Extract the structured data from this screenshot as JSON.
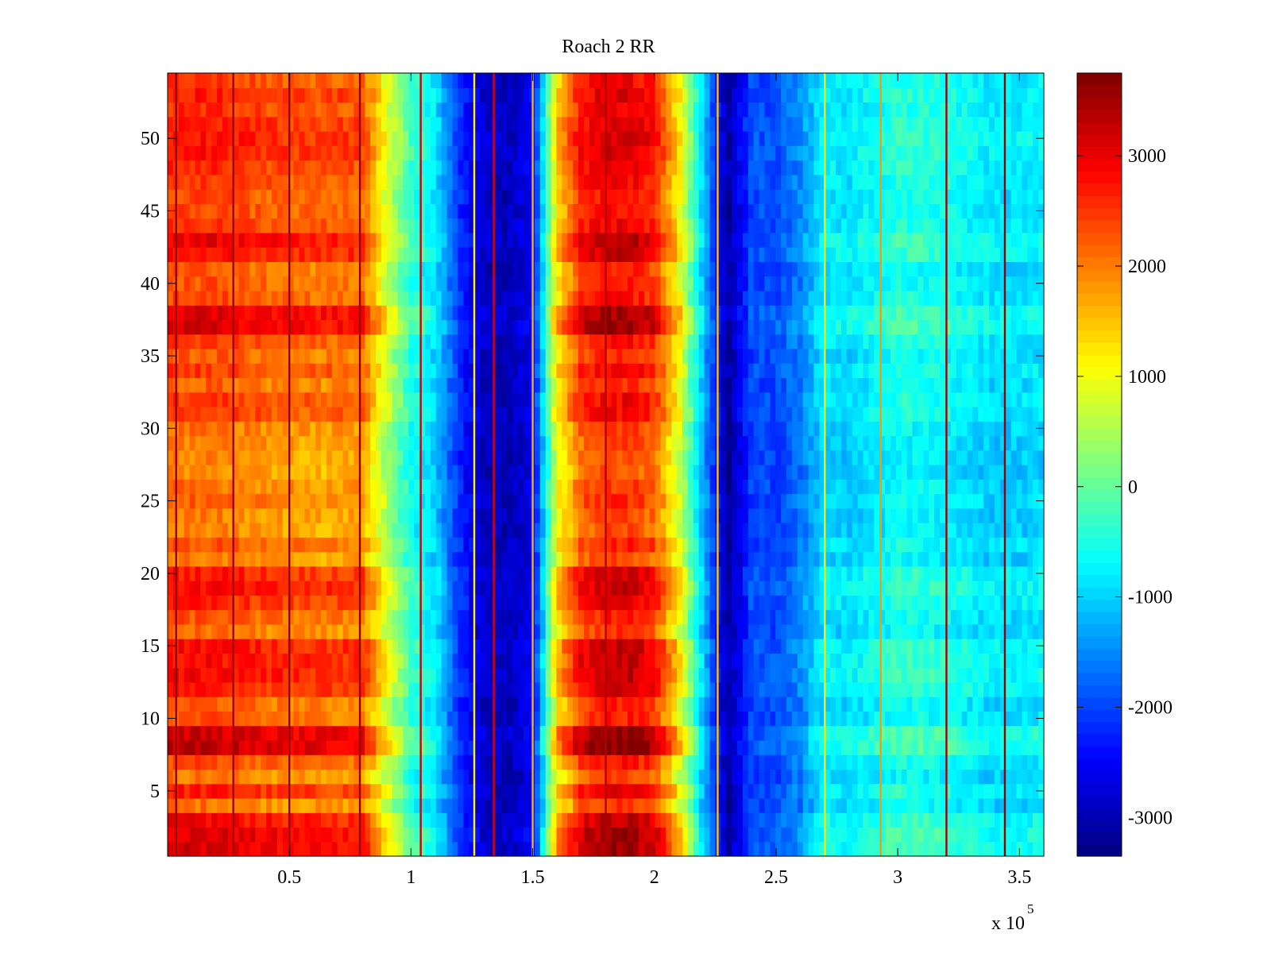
{
  "chart_data": {
    "type": "heatmap",
    "title": "Roach 2 RR",
    "xlabel": "",
    "ylabel": "",
    "x_multiplier_label": "x 10",
    "x_multiplier_exponent": "5",
    "xlim": [
      0,
      360000
    ],
    "ylim": [
      0.5,
      54.5
    ],
    "x_ticks": [
      50000,
      100000,
      150000,
      200000,
      250000,
      300000,
      350000
    ],
    "x_tick_labels": [
      "0.5",
      "1",
      "1.5",
      "2",
      "2.5",
      "3",
      "3.5"
    ],
    "y_ticks": [
      5,
      10,
      15,
      20,
      25,
      30,
      35,
      40,
      45,
      50
    ],
    "y_tick_labels": [
      "5",
      "10",
      "15",
      "20",
      "25",
      "30",
      "35",
      "40",
      "45",
      "50"
    ],
    "colorbar": {
      "colormap": "jet",
      "clim": [
        -3350,
        3750
      ],
      "ticks": [
        3000,
        2000,
        1000,
        0,
        -1000,
        -2000,
        -3000
      ],
      "tick_labels": [
        "3000",
        "2000",
        "1000",
        "0",
        "-1000",
        "-2000",
        "-3000"
      ]
    },
    "rows": {
      "count": 54,
      "y_start": 1,
      "y_end": 54
    },
    "column_profile": {
      "x": [
        0,
        20000,
        40000,
        60000,
        80000,
        90000,
        100000,
        110000,
        120000,
        130000,
        140000,
        150000,
        160000,
        170000,
        180000,
        190000,
        200000,
        210000,
        220000,
        230000,
        240000,
        250000,
        260000,
        270000,
        280000,
        300000,
        320000,
        340000,
        360000
      ],
      "values": [
        2200,
        2200,
        2000,
        1900,
        1900,
        600,
        -500,
        -1000,
        -2200,
        -2900,
        -3000,
        -2600,
        1100,
        2300,
        2600,
        2600,
        2300,
        900,
        -1200,
        -3200,
        -2000,
        -2000,
        -1600,
        -900,
        -1000,
        -600,
        -700,
        -1000,
        -900
      ]
    },
    "row_offsets": {
      "rows": [
        1,
        2,
        3,
        4,
        5,
        6,
        7,
        8,
        9,
        10,
        11,
        12,
        13,
        14,
        15,
        16,
        17,
        18,
        19,
        20,
        21,
        22,
        23,
        24,
        25,
        26,
        27,
        28,
        29,
        30,
        31,
        32,
        33,
        34,
        35,
        36,
        37,
        38,
        39,
        40,
        41,
        42,
        43,
        44,
        45,
        46,
        47,
        48,
        49,
        50,
        51,
        52,
        53,
        54
      ],
      "values": [
        900,
        900,
        700,
        -100,
        500,
        -150,
        200,
        1100,
        1000,
        100,
        50,
        550,
        700,
        650,
        650,
        -100,
        100,
        450,
        650,
        550,
        -200,
        100,
        -250,
        -200,
        0,
        -100,
        -300,
        -250,
        -200,
        -100,
        300,
        300,
        0,
        300,
        50,
        250,
        900,
        900,
        200,
        100,
        50,
        650,
        800,
        350,
        200,
        200,
        300,
        400,
        550,
        600,
        500,
        350,
        500,
        300
      ]
    },
    "vertical_streaks": [
      {
        "x": 3500,
        "value": 3600
      },
      {
        "x": 27000,
        "value": 3500
      },
      {
        "x": 50000,
        "value": 3700
      },
      {
        "x": 79000,
        "value": 3600
      },
      {
        "x": 104000,
        "value": 3200
      },
      {
        "x": 126000,
        "value": 1200
      },
      {
        "x": 134000,
        "value": 3100
      },
      {
        "x": 150000,
        "value": 1600
      },
      {
        "x": 180000,
        "value": 3400
      },
      {
        "x": 226000,
        "value": 1500
      },
      {
        "x": 270000,
        "value": 1200
      },
      {
        "x": 293000,
        "value": 1800
      },
      {
        "x": 320000,
        "value": 3500
      },
      {
        "x": 344000,
        "value": 3600
      }
    ]
  }
}
